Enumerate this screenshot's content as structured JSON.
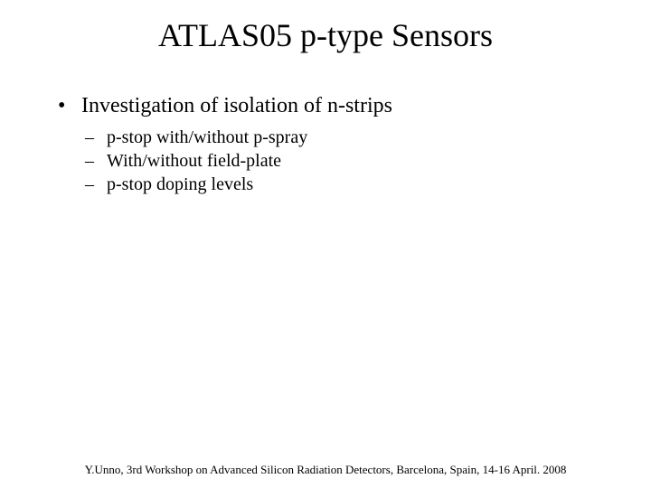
{
  "colors": {
    "background": "#ffffff",
    "text": "#000000",
    "title": "#000000",
    "footer": "#000000"
  },
  "typography": {
    "family": "Times New Roman",
    "title_fontsize": 36,
    "bullet_fontsize": 24,
    "subbullet_fontsize": 20,
    "footer_fontsize": 13
  },
  "title": "ATLAS05 p-type Sensors",
  "bullets": [
    {
      "text": "Investigation of isolation of n-strips",
      "sub": [
        "p-stop with/without p-spray",
        "With/without field-plate",
        "p-stop doping levels"
      ]
    }
  ],
  "footer": "Y.Unno, 3rd Workshop on Advanced Silicon Radiation Detectors, Barcelona, Spain, 14-16 April. 2008"
}
